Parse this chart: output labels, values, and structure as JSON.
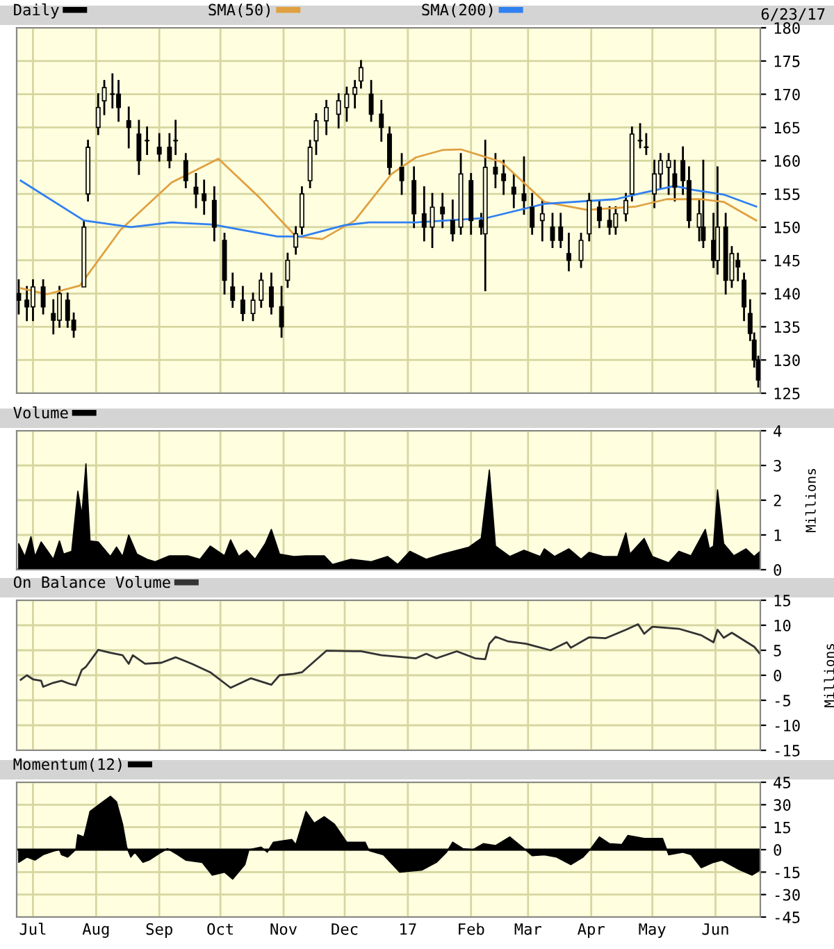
{
  "chart_data": [
    {
      "type": "candlestick",
      "legend": "top",
      "grid": true,
      "tick_labels": "y",
      "annotations": [
        "6/23/17"
      ],
      "xlim": [
        "2016-06-23",
        "2017-06-23"
      ],
      "xticks": [
        {
          "value": "2016-07-01",
          "label": null
        },
        {
          "value": "2016-08-01",
          "label": null
        },
        {
          "value": "2016-09-01",
          "label": null
        },
        {
          "value": "2016-10-01",
          "label": null
        },
        {
          "value": "2016-11-01",
          "label": null
        },
        {
          "value": "2016-12-01",
          "label": null
        },
        {
          "value": "2017-01-01",
          "label": null
        },
        {
          "value": "2017-02-01",
          "label": null
        },
        {
          "value": "2017-03-01",
          "label": null
        },
        {
          "value": "2017-04-01",
          "label": null
        },
        {
          "value": "2017-05-01",
          "label": null
        },
        {
          "value": "2017-06-01",
          "label": null
        }
      ],
      "ylim": [
        125,
        180
      ],
      "yticks": [
        125,
        130,
        135,
        140,
        145,
        150,
        155,
        160,
        165,
        170,
        175,
        180
      ],
      "series": [
        {
          "type": "candlestick",
          "name": "Daily",
          "color": "#000000",
          "x": [
            "2016-06-24",
            "2016-06-28",
            "2016-07-01",
            "2016-07-06",
            "2016-07-11",
            "2016-07-14",
            "2016-07-18",
            "2016-07-21",
            "2016-07-26",
            "2016-07-28",
            "2016-08-02",
            "2016-08-05",
            "2016-08-09",
            "2016-08-12",
            "2016-08-17",
            "2016-08-22",
            "2016-08-26",
            "2016-09-01",
            "2016-09-06",
            "2016-09-09",
            "2016-09-14",
            "2016-09-19",
            "2016-09-23",
            "2016-09-28",
            "2016-10-03",
            "2016-10-07",
            "2016-10-12",
            "2016-10-17",
            "2016-10-21",
            "2016-10-26",
            "2016-10-31",
            "2016-11-03",
            "2016-11-07",
            "2016-11-10",
            "2016-11-14",
            "2016-11-17",
            "2016-11-22",
            "2016-11-28",
            "2016-12-02",
            "2016-12-06",
            "2016-12-09",
            "2016-12-14",
            "2016-12-19",
            "2016-12-23",
            "2016-12-29",
            "2017-01-04",
            "2017-01-09",
            "2017-01-13",
            "2017-01-18",
            "2017-01-23",
            "2017-01-27",
            "2017-02-01",
            "2017-02-06",
            "2017-02-08",
            "2017-02-13",
            "2017-02-17",
            "2017-02-22",
            "2017-02-27",
            "2017-03-03",
            "2017-03-08",
            "2017-03-13",
            "2017-03-17",
            "2017-03-21",
            "2017-03-27",
            "2017-03-31",
            "2017-04-05",
            "2017-04-10",
            "2017-04-13",
            "2017-04-18",
            "2017-04-21",
            "2017-04-25",
            "2017-04-28",
            "2017-05-02",
            "2017-05-05",
            "2017-05-09",
            "2017-05-12",
            "2017-05-16",
            "2017-05-19",
            "2017-05-24",
            "2017-05-26",
            "2017-05-31",
            "2017-06-02",
            "2017-06-06",
            "2017-06-09",
            "2017-06-12",
            "2017-06-15",
            "2017-06-18",
            "2017-06-20",
            "2017-06-22"
          ],
          "ohlc": [
            [
              140,
              142,
              137,
              139
            ],
            [
              139,
              141,
              136,
              138
            ],
            [
              138,
              142,
              136,
              141
            ],
            [
              141,
              142,
              137,
              138
            ],
            [
              137,
              139,
              134,
              136
            ],
            [
              136,
              141,
              135,
              140
            ],
            [
              139,
              140,
              135,
              136
            ],
            [
              136,
              137,
              133.5,
              134.5
            ],
            [
              141,
              151,
              141,
              150
            ],
            [
              155,
              163,
              154,
              162
            ],
            [
              165,
              170,
              164,
              168
            ],
            [
              169,
              172,
              167,
              171
            ],
            [
              170,
              173,
              168,
              170
            ],
            [
              170,
              172,
              166,
              168
            ],
            [
              166,
              168,
              162,
              165
            ],
            [
              164,
              166,
              158,
              160
            ],
            [
              163,
              165,
              161,
              163
            ],
            [
              162,
              164,
              160,
              161
            ],
            [
              162,
              164,
              159,
              160
            ],
            [
              163,
              166,
              161,
              163
            ],
            [
              160,
              161,
              156,
              157
            ],
            [
              156,
              158,
              153,
              155
            ],
            [
              155,
              157,
              152,
              154
            ],
            [
              154,
              156,
              148,
              150
            ],
            [
              148,
              149,
              140,
              142
            ],
            [
              141,
              143,
              138,
              139
            ],
            [
              139,
              141,
              136,
              137
            ],
            [
              137,
              140,
              136,
              139
            ],
            [
              139,
              143,
              138,
              142
            ],
            [
              141,
              143,
              137,
              138
            ],
            [
              138,
              141,
              133.5,
              135
            ],
            [
              142,
              146,
              141,
              145
            ],
            [
              147,
              150,
              146,
              149
            ],
            [
              150,
              156,
              149,
              155
            ],
            [
              157,
              163,
              156,
              162
            ],
            [
              163,
              167,
              161,
              166
            ],
            [
              166,
              169,
              164,
              168
            ],
            [
              167,
              170,
              165,
              169
            ],
            [
              168,
              171,
              166,
              170
            ],
            [
              170,
              172,
              168,
              171
            ],
            [
              172,
              175,
              171,
              174
            ],
            [
              170,
              172,
              166,
              167
            ],
            [
              167,
              169,
              163,
              165
            ],
            [
              164,
              165,
              158,
              159
            ],
            [
              159,
              161,
              155,
              157
            ],
            [
              157,
              159,
              150,
              152
            ],
            [
              152,
              156,
              148,
              150
            ],
            [
              150,
              155,
              147,
              153
            ],
            [
              153,
              155,
              150,
              152
            ],
            [
              151,
              154,
              148,
              149
            ],
            [
              150,
              161,
              149,
              158
            ],
            [
              157,
              158,
              149,
              151
            ],
            [
              151,
              152,
              149,
              150
            ],
            [
              149,
              163,
              140.5,
              159
            ],
            [
              159,
              161,
              156,
              158
            ],
            [
              158,
              160,
              155,
              157
            ],
            [
              156,
              158,
              153,
              155
            ],
            [
              155,
              160.5,
              152,
              154
            ],
            [
              153,
              155,
              149,
              150
            ],
            [
              151,
              154,
              148,
              152
            ],
            [
              150,
              152,
              147,
              148
            ],
            [
              150,
              152,
              147,
              148
            ],
            [
              146,
              149,
              143.5,
              145
            ],
            [
              145,
              149,
              144,
              148
            ],
            [
              149,
              155,
              148,
              154
            ],
            [
              153,
              154,
              150,
              151
            ],
            [
              151,
              153,
              149,
              150
            ],
            [
              150,
              153,
              149,
              152
            ],
            [
              152,
              155,
              151,
              154
            ],
            [
              155,
              165,
              154,
              164
            ],
            [
              163,
              165.5,
              162,
              163
            ],
            [
              162,
              164,
              161,
              162
            ],
            [
              155,
              160,
              153,
              158
            ],
            [
              158,
              161,
              156,
              160
            ],
            [
              159,
              161,
              155,
              160
            ],
            [
              158,
              160,
              154,
              156
            ],
            [
              160,
              162,
              155,
              157
            ],
            [
              157,
              159,
              150,
              151
            ],
            [
              150,
              154,
              148,
              152
            ],
            [
              150,
              160,
              147,
              148
            ],
            [
              148,
              152,
              144,
              145
            ],
            [
              145,
              159,
              143,
              150
            ],
            [
              150,
              152,
              140,
              142
            ],
            [
              142,
              147,
              141,
              146
            ],
            [
              145,
              146,
              142,
              144
            ],
            [
              142,
              143,
              136,
              138
            ],
            [
              137,
              139,
              133,
              134
            ],
            [
              133,
              134,
              129,
              130
            ],
            [
              130,
              130.5,
              126,
              127
            ]
          ]
        },
        {
          "type": "line",
          "name": "SMA(50)",
          "color": "#e0a040",
          "x": [
            "2016-06-25",
            "2016-07-08",
            "2016-07-24",
            "2016-08-13",
            "2016-09-07",
            "2016-09-30",
            "2016-10-20",
            "2016-11-07",
            "2016-11-20",
            "2016-12-06",
            "2016-12-24",
            "2017-01-05",
            "2017-01-18",
            "2017-01-27",
            "2017-02-16",
            "2017-03-09",
            "2017-03-30",
            "2017-04-23",
            "2017-05-08",
            "2017-05-25",
            "2017-06-05",
            "2017-06-21"
          ],
          "values": [
            140.8,
            139.9,
            141.2,
            149.6,
            156.7,
            160.3,
            154.5,
            148.6,
            148.2,
            151,
            158,
            160.5,
            161.6,
            161.7,
            159.8,
            153.8,
            152.6,
            153.1,
            154.2,
            154.2,
            153.8,
            151
          ]
        },
        {
          "type": "line",
          "name": "SMA(200)",
          "color": "#3080f0",
          "x": [
            "2016-06-25",
            "2016-07-26",
            "2016-08-18",
            "2016-09-07",
            "2016-09-27",
            "2016-10-29",
            "2016-11-10",
            "2016-12-01",
            "2016-12-13",
            "2017-01-05",
            "2017-02-09",
            "2017-03-09",
            "2017-04-13",
            "2017-04-27",
            "2017-05-12",
            "2017-05-21",
            "2017-06-05",
            "2017-06-21"
          ],
          "values": [
            157,
            151,
            150,
            150.7,
            150.4,
            148.6,
            148.6,
            150.3,
            150.7,
            150.7,
            151.4,
            153.5,
            154.2,
            155.2,
            156.2,
            155.6,
            154.9,
            153.1
          ]
        }
      ]
    },
    {
      "type": "area",
      "legend": "top",
      "grid": true,
      "tick_labels": "y",
      "ylabel": "Millions",
      "xlim": [
        "2016-06-23",
        "2017-06-23"
      ],
      "xticks": [
        {
          "value": "2016-07-01",
          "label": null
        },
        {
          "value": "2016-08-01",
          "label": null
        },
        {
          "value": "2016-09-01",
          "label": null
        },
        {
          "value": "2016-10-01",
          "label": null
        },
        {
          "value": "2016-11-01",
          "label": null
        },
        {
          "value": "2016-12-01",
          "label": null
        },
        {
          "value": "2017-01-01",
          "label": null
        },
        {
          "value": "2017-02-01",
          "label": null
        },
        {
          "value": "2017-03-01",
          "label": null
        },
        {
          "value": "2017-04-01",
          "label": null
        },
        {
          "value": "2017-05-01",
          "label": null
        },
        {
          "value": "2017-06-01",
          "label": null
        }
      ],
      "ylim": [
        0,
        4
      ],
      "yticks": [
        0,
        1,
        2,
        3,
        4
      ],
      "series": [
        {
          "name": "Volume",
          "color": "#000000",
          "x": [
            "2016-06-24",
            "2016-06-27",
            "2016-06-30",
            "2016-07-02",
            "2016-07-05",
            "2016-07-11",
            "2016-07-14",
            "2016-07-16",
            "2016-07-20",
            "2016-07-23",
            "2016-07-25",
            "2016-07-27",
            "2016-07-29",
            "2016-08-02",
            "2016-08-08",
            "2016-08-11",
            "2016-08-14",
            "2016-08-17",
            "2016-08-21",
            "2016-08-26",
            "2016-08-30",
            "2016-09-06",
            "2016-09-15",
            "2016-09-21",
            "2016-09-26",
            "2016-10-03",
            "2016-10-06",
            "2016-10-10",
            "2016-10-14",
            "2016-10-18",
            "2016-10-23",
            "2016-10-26",
            "2016-10-30",
            "2016-11-06",
            "2016-11-12",
            "2016-11-21",
            "2016-11-25",
            "2016-12-04",
            "2016-12-14",
            "2016-12-22",
            "2016-12-27",
            "2017-01-02",
            "2017-01-10",
            "2017-01-18",
            "2017-01-31",
            "2017-02-06",
            "2017-02-10",
            "2017-02-13",
            "2017-02-20",
            "2017-02-27",
            "2017-03-07",
            "2017-03-09",
            "2017-03-14",
            "2017-03-21",
            "2017-03-27",
            "2017-03-31",
            "2017-04-07",
            "2017-04-14",
            "2017-04-18",
            "2017-04-20",
            "2017-04-27",
            "2017-05-01",
            "2017-05-09",
            "2017-05-14",
            "2017-05-20",
            "2017-05-27",
            "2017-05-29",
            "2017-05-31",
            "2017-06-02",
            "2017-06-05",
            "2017-06-10",
            "2017-06-16",
            "2017-06-20",
            "2017-06-23"
          ],
          "values": [
            0.75,
            0.38,
            0.95,
            0.38,
            0.8,
            0.3,
            0.83,
            0.45,
            0.53,
            2.26,
            1.58,
            3.05,
            0.83,
            0.8,
            0.38,
            0.65,
            0.38,
            1.0,
            0.45,
            0.3,
            0.23,
            0.4,
            0.4,
            0.3,
            0.68,
            0.4,
            0.86,
            0.38,
            0.56,
            0.3,
            0.75,
            1.16,
            0.45,
            0.38,
            0.4,
            0.4,
            0.15,
            0.3,
            0.23,
            0.38,
            0.15,
            0.53,
            0.3,
            0.45,
            0.65,
            0.9,
            2.87,
            0.68,
            0.38,
            0.56,
            0.38,
            0.6,
            0.38,
            0.6,
            0.3,
            0.5,
            0.38,
            0.38,
            1.06,
            0.45,
            0.9,
            0.38,
            0.2,
            0.53,
            0.4,
            1.16,
            0.6,
            0.68,
            2.3,
            0.75,
            0.4,
            0.6,
            0.38,
            0.53
          ]
        }
      ]
    },
    {
      "type": "line",
      "legend": "top",
      "grid": true,
      "tick_labels": "y",
      "ylabel": "Millions",
      "xlim": [
        "2016-06-23",
        "2017-06-23"
      ],
      "xticks": [
        {
          "value": "2016-07-01",
          "label": null
        },
        {
          "value": "2016-08-01",
          "label": null
        },
        {
          "value": "2016-09-01",
          "label": null
        },
        {
          "value": "2016-10-01",
          "label": null
        },
        {
          "value": "2016-11-01",
          "label": null
        },
        {
          "value": "2016-12-01",
          "label": null
        },
        {
          "value": "2017-01-01",
          "label": null
        },
        {
          "value": "2017-02-01",
          "label": null
        },
        {
          "value": "2017-03-01",
          "label": null
        },
        {
          "value": "2017-04-01",
          "label": null
        },
        {
          "value": "2017-05-01",
          "label": null
        },
        {
          "value": "2017-06-01",
          "label": null
        }
      ],
      "ylim": [
        -15,
        15
      ],
      "yticks": [
        -15,
        -10,
        -5,
        0,
        5,
        10,
        15
      ],
      "series": [
        {
          "name": "On Balance Volume",
          "color": "#333333",
          "x": [
            "2016-06-25",
            "2016-06-28",
            "2016-07-01",
            "2016-07-05",
            "2016-07-06",
            "2016-07-11",
            "2016-07-15",
            "2016-07-19",
            "2016-07-22",
            "2016-07-25",
            "2016-07-27",
            "2016-08-01",
            "2016-08-02",
            "2016-08-08",
            "2016-08-14",
            "2016-08-17",
            "2016-08-19",
            "2016-08-25",
            "2016-09-02",
            "2016-09-09",
            "2016-09-17",
            "2016-09-26",
            "2016-10-06",
            "2016-10-16",
            "2016-10-26",
            "2016-10-30",
            "2016-11-06",
            "2016-11-10",
            "2016-11-22",
            "2016-12-09",
            "2016-12-19",
            "2017-01-05",
            "2017-01-10",
            "2017-01-15",
            "2017-01-25",
            "2017-02-03",
            "2017-02-08",
            "2017-02-10",
            "2017-02-13",
            "2017-02-19",
            "2017-02-28",
            "2017-03-12",
            "2017-03-20",
            "2017-03-22",
            "2017-03-31",
            "2017-04-08",
            "2017-04-18",
            "2017-04-24",
            "2017-04-27",
            "2017-05-01",
            "2017-05-14",
            "2017-05-25",
            "2017-05-31",
            "2017-06-02",
            "2017-06-05",
            "2017-06-09",
            "2017-06-20",
            "2017-06-23"
          ],
          "values": [
            -0.9,
            0,
            -0.8,
            -1.1,
            -2.3,
            -1.5,
            -1.1,
            -1.7,
            -2,
            1.1,
            1.7,
            4.5,
            5.1,
            4.5,
            4,
            2.3,
            4,
            2.3,
            2.5,
            3.6,
            2.3,
            0.6,
            -2.5,
            -0.6,
            -1.9,
            0,
            0.3,
            0.6,
            4.9,
            4.8,
            4,
            3.4,
            4.3,
            3.4,
            4.8,
            3.4,
            3.2,
            6.3,
            7.7,
            6.8,
            6.3,
            5,
            6.6,
            5.5,
            7.6,
            7.4,
            9.1,
            10.2,
            8.3,
            9.7,
            9.3,
            8,
            6.6,
            9.1,
            7.5,
            8.5,
            5.7,
            4.2
          ]
        }
      ]
    },
    {
      "type": "area",
      "legend": "top",
      "grid": true,
      "xlim": [
        "2016-06-23",
        "2017-06-23"
      ],
      "xticks": [
        {
          "value": "2016-07-01",
          "label": "Jul"
        },
        {
          "value": "2016-08-01",
          "label": "Aug"
        },
        {
          "value": "2016-09-01",
          "label": "Sep"
        },
        {
          "value": "2016-10-01",
          "label": "Oct"
        },
        {
          "value": "2016-11-01",
          "label": "Nov"
        },
        {
          "value": "2016-12-01",
          "label": "Dec"
        },
        {
          "value": "2017-01-01",
          "label": "17"
        },
        {
          "value": "2017-02-01",
          "label": "Feb"
        },
        {
          "value": "2017-03-01",
          "label": "Mar"
        },
        {
          "value": "2017-04-01",
          "label": "Apr"
        },
        {
          "value": "2017-05-01",
          "label": "May"
        },
        {
          "value": "2017-06-01",
          "label": "Jun"
        }
      ],
      "ylim": [
        -45,
        45
      ],
      "yticks": [
        -45,
        -30,
        -15,
        0,
        15,
        30,
        45
      ],
      "series": [
        {
          "name": "Momentum(12)",
          "color": "#000000",
          "x": [
            "2016-06-24",
            "2016-06-28",
            "2016-07-02",
            "2016-07-06",
            "2016-07-11",
            "2016-07-14",
            "2016-07-15",
            "2016-07-18",
            "2016-07-22",
            "2016-07-23",
            "2016-07-26",
            "2016-07-29",
            "2016-08-03",
            "2016-08-08",
            "2016-08-11",
            "2016-08-14",
            "2016-08-16",
            "2016-08-18",
            "2016-08-20",
            "2016-08-24",
            "2016-08-27",
            "2016-09-02",
            "2016-09-05",
            "2016-09-10",
            "2016-09-14",
            "2016-09-22",
            "2016-09-27",
            "2016-10-03",
            "2016-10-07",
            "2016-10-13",
            "2016-10-15",
            "2016-10-21",
            "2016-10-24",
            "2016-10-27",
            "2016-11-05",
            "2016-11-07",
            "2016-11-12",
            "2016-11-16",
            "2016-11-21",
            "2016-11-26",
            "2016-12-02",
            "2016-12-11",
            "2016-12-13",
            "2016-12-20",
            "2016-12-28",
            "2017-01-08",
            "2017-01-15",
            "2017-01-20",
            "2017-01-23",
            "2017-01-28",
            "2017-02-02",
            "2017-02-07",
            "2017-02-13",
            "2017-02-20",
            "2017-02-27",
            "2017-03-03",
            "2017-03-09",
            "2017-03-15",
            "2017-03-22",
            "2017-03-28",
            "2017-04-01",
            "2017-04-05",
            "2017-04-10",
            "2017-04-16",
            "2017-04-19",
            "2017-04-27",
            "2017-05-06",
            "2017-05-09",
            "2017-05-16",
            "2017-05-20",
            "2017-05-25",
            "2017-05-31",
            "2017-06-04",
            "2017-06-13",
            "2017-06-19",
            "2017-06-23"
          ],
          "values": [
            -8.5,
            -5,
            -7,
            -3.4,
            -1,
            0,
            -3.4,
            -5,
            0,
            10,
            8.5,
            25.5,
            30.6,
            35.7,
            32,
            17,
            1.7,
            -5,
            -1.7,
            -8.5,
            -7,
            -1.7,
            0.7,
            -3.4,
            -7,
            -8.5,
            -17,
            -15,
            -19.7,
            -10,
            0,
            1.7,
            -1.7,
            5,
            6.8,
            3.4,
            25.5,
            17.7,
            22,
            17,
            5,
            5,
            -0.7,
            -3.4,
            -15,
            -13.6,
            -8.5,
            -1.7,
            5,
            0.7,
            0,
            4,
            2.7,
            8.5,
            0.7,
            -4,
            -3.4,
            -5,
            -10,
            -5,
            1,
            8.5,
            4,
            3.4,
            9.5,
            7.5,
            7.5,
            -3.4,
            -1.7,
            -3.4,
            -12,
            -8.5,
            -7,
            -13.6,
            -17,
            -13.6
          ]
        }
      ]
    }
  ]
}
